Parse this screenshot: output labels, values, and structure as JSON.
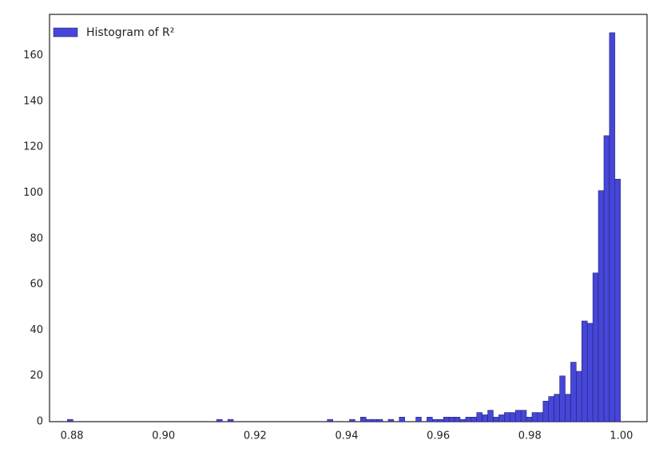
{
  "chart_data": {
    "type": "histogram",
    "bins": [
      0.879,
      0.880208,
      0.881416,
      0.882624,
      0.883832,
      0.88504,
      0.886248,
      0.887456,
      0.888664,
      0.889872,
      0.89108,
      0.892288,
      0.893496,
      0.894704,
      0.895912,
      0.89712,
      0.898328,
      0.899536,
      0.900744,
      0.901952,
      0.90316,
      0.904368,
      0.905576,
      0.906784,
      0.907992,
      0.9092,
      0.910408,
      0.911616,
      0.912824,
      0.914032,
      0.91524,
      0.916448,
      0.917656,
      0.918864,
      0.920072,
      0.92128,
      0.922488,
      0.923696,
      0.924904,
      0.926112,
      0.92732,
      0.928528,
      0.929736,
      0.930944,
      0.932152,
      0.93336,
      0.934568,
      0.935776,
      0.936984,
      0.938192,
      0.9394,
      0.940608,
      0.941816,
      0.943024,
      0.944232,
      0.94544,
      0.946648,
      0.947856,
      0.949064,
      0.950272,
      0.95148,
      0.952688,
      0.953896,
      0.955104,
      0.956312,
      0.95752,
      0.958728,
      0.959936,
      0.961144,
      0.962352,
      0.96356,
      0.964768,
      0.965976,
      0.967184,
      0.968392,
      0.9696,
      0.970808,
      0.972016,
      0.973224,
      0.974432,
      0.97564,
      0.976848,
      0.978056,
      0.979264,
      0.980472,
      0.98168,
      0.982888,
      0.984096,
      0.985304,
      0.986512,
      0.98772,
      0.988928,
      0.990136,
      0.991344,
      0.992552,
      0.99376,
      0.994968,
      0.996176,
      0.997384,
      0.998592,
      0.9998
    ],
    "series": [
      {
        "name": "Histogram of R²",
        "color": "#4646d8",
        "values": [
          1,
          0,
          0,
          0,
          0,
          0,
          0,
          0,
          0,
          0,
          0,
          0,
          0,
          0,
          0,
          0,
          0,
          0,
          0,
          0,
          0,
          0,
          0,
          0,
          0,
          0,
          0,
          1,
          0,
          1,
          0,
          0,
          0,
          0,
          0,
          0,
          0,
          0,
          0,
          0,
          0,
          0,
          0,
          0,
          0,
          0,
          0,
          1,
          0,
          0,
          0,
          1,
          0,
          2,
          1,
          1,
          1,
          0,
          1,
          0,
          2,
          0,
          0,
          2,
          0,
          2,
          1,
          1,
          2,
          2,
          2,
          1,
          2,
          2,
          4,
          3,
          5,
          2,
          3,
          4,
          4,
          5,
          5,
          2,
          4,
          4,
          9,
          11,
          12,
          20,
          12,
          26,
          22,
          44,
          43,
          65,
          101,
          125,
          170,
          106
        ]
      }
    ],
    "xlim": [
      0.8751,
      1.0056
    ],
    "ylim": [
      0,
      178
    ],
    "xticks": [
      0.88,
      {
        "value": 0.9,
        "label": "0.90"
      },
      0.92,
      0.94,
      0.96,
      0.98,
      {
        "value": 1,
        "label": "1.00"
      }
    ],
    "yticks": [
      0,
      20,
      40,
      60,
      80,
      100,
      120,
      140,
      160
    ],
    "legend": "upper left"
  }
}
